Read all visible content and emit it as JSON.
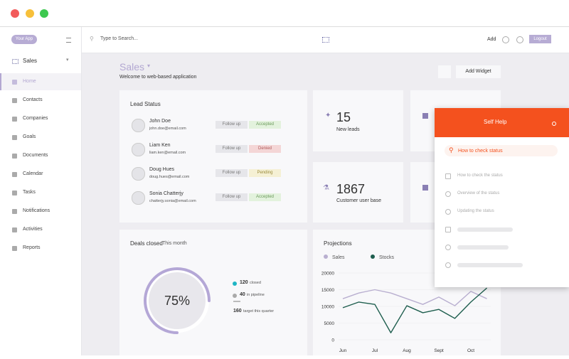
{
  "sidebar": {
    "logo": "Your App",
    "section": "Sales",
    "nav": [
      "Home",
      "Contacts",
      "Companies",
      "Goals",
      "Documents",
      "Calendar",
      "Tasks",
      "Notifications",
      "Activities",
      "Reports"
    ]
  },
  "topbar": {
    "search_placeholder": "Type to Search...",
    "add": "Add",
    "logout": "Logout"
  },
  "header": {
    "title": "Sales",
    "subtitle": "Welcome to web-based application",
    "add_widget": "Add Widget"
  },
  "lead_status": {
    "title": "Lead Status",
    "leads": [
      {
        "name": "John Doe",
        "email": "john.doe@email.com",
        "action": "Follow up",
        "status": "Accepted"
      },
      {
        "name": "Liam Ken",
        "email": "liam.ken@email.com",
        "action": "Follow up",
        "status": "Denied"
      },
      {
        "name": "Doug Hues",
        "email": "doug.hues@email.com",
        "action": "Follow up",
        "status": "Pending"
      },
      {
        "name": "Sonia Chatterjy",
        "email": "chatterjy.sonia@email.com",
        "action": "Follow up",
        "status": "Accepted"
      }
    ]
  },
  "stats": [
    {
      "value": 15,
      "label": "New leads"
    },
    {
      "value": 1867,
      "label": "Customer user base"
    }
  ],
  "deals": {
    "title": "Deals closed",
    "period": "This month",
    "percent": {
      "value": 75,
      "label": "75%"
    },
    "items": [
      {
        "value": 120,
        "label": "closed"
      },
      {
        "value": 40,
        "label": "in pipeline"
      },
      {
        "value": 160,
        "label": "target this quarter"
      }
    ]
  },
  "chart_data": {
    "type": "line",
    "title": "Projections",
    "categories": [
      "Jun",
      null,
      "Jul",
      null,
      "Aug",
      null,
      "Sept",
      null,
      "Oct",
      null
    ],
    "series": [
      {
        "name": "Sales",
        "color": "#b9afd0",
        "values": [
          12300,
          14000,
          15000,
          14000,
          12300,
          10600,
          12800,
          10200,
          14500,
          12300
        ]
      },
      {
        "name": "Stocks",
        "color": "#1e5e4e",
        "values": [
          9600,
          11300,
          10600,
          2100,
          10200,
          8100,
          9100,
          6400,
          11300,
          15500
        ]
      }
    ],
    "ylim": [
      0,
      20000
    ],
    "yticks": [
      0,
      5000,
      10000,
      15000,
      20000
    ],
    "grid": true
  },
  "self_help": {
    "title": "Self Help",
    "search": "How to check status",
    "items": [
      "How to check the status",
      "Overview of the status",
      "Updating the status"
    ]
  }
}
